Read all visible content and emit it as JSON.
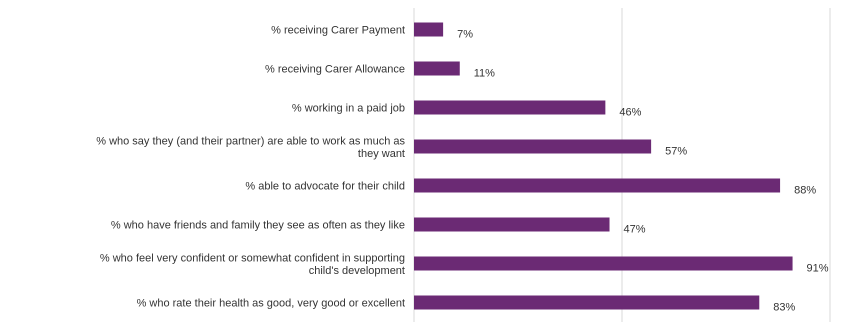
{
  "chart_data": {
    "type": "bar",
    "orientation": "horizontal",
    "categories": [
      [
        "% receiving Carer Payment"
      ],
      [
        "% receiving Carer Allowance"
      ],
      [
        "% working in a paid job"
      ],
      [
        "% who say they (and their partner) are able to work as much as",
        "they want"
      ],
      [
        "% able to advocate for their child"
      ],
      [
        "% who have friends and family they see as often as they like"
      ],
      [
        "% who feel very confident or somewhat confident in supporting",
        "child's development"
      ],
      [
        "% who rate their health as good, very good or excellent"
      ]
    ],
    "values": [
      7,
      11,
      46,
      57,
      88,
      47,
      91,
      83
    ],
    "data_labels": [
      "7%",
      "11%",
      "46%",
      "57%",
      "88%",
      "47%",
      "91%",
      "83%"
    ],
    "xlim": [
      0,
      100
    ],
    "gridlines": [
      0,
      50,
      100
    ],
    "grid": true,
    "legend": "none",
    "bar_color": "#6b2a74",
    "grid_color": "#d9d9d9",
    "title": "",
    "xlabel": "",
    "ylabel": ""
  }
}
